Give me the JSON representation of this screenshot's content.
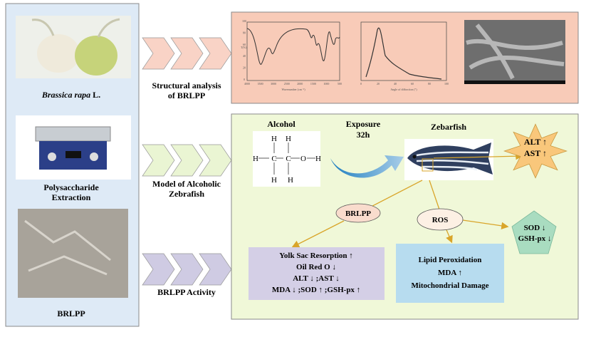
{
  "left_panel": {
    "items": [
      {
        "label_italic": "Brassica rapa",
        "label_rest": " L.",
        "image": "turnip-photo"
      },
      {
        "label_line1": "Polysaccharide",
        "label_line2": "Extraction",
        "image": "ultrasonic-bath-photo"
      },
      {
        "label": "BRLPP",
        "image": "polysaccharide-powder-photo"
      }
    ]
  },
  "steps": [
    {
      "line1": "Structural analysis",
      "line2": "of BRLPP"
    },
    {
      "line1": "Model of Alcoholic",
      "line2": "Zebrafish"
    },
    {
      "line1": "BRLPP Activity"
    }
  ],
  "structural_panel": {
    "ftir": {
      "x_ticks": [
        "4000",
        "3500",
        "3000",
        "2500",
        "2000",
        "1500",
        "1000",
        "500"
      ],
      "y_ticks": [
        "0",
        "20",
        "40",
        "60",
        "80",
        "100"
      ],
      "ylabel": "T(%)",
      "xlabel": "Wavenumber (cm⁻¹)"
    },
    "xrd": {
      "x_ticks": [
        "0",
        "20",
        "40",
        "60",
        "80",
        "100"
      ],
      "xlabel": "Angle of diffraction (°)"
    },
    "sem": {
      "image": "sem-micrograph"
    }
  },
  "model_panel": {
    "alcohol_label": "Alcohol",
    "ethanol_atoms": {
      "H": "H",
      "C": "C",
      "O": "O"
    },
    "exposure_line1": "Exposure",
    "exposure_line2": "32h",
    "zebrafish_label": "Zebarfish",
    "star_line1": "ALT ↑",
    "star_line2": "AST ↑",
    "brlpp_ellipse": "BRLPP",
    "ros_ellipse": "ROS",
    "pentagon_line1": "SOD ↓",
    "pentagon_line2": "GSH-px ↓",
    "brlpp_effects": [
      "Yolk Sac Resorption ↑",
      "Oil Red O ↓",
      "ALT ↓ ;AST ↓",
      "MDA ↓ ;SOD ↑ ;GSH-px ↑"
    ],
    "ros_effects": [
      "Lipid Peroxidation",
      "MDA ↑",
      "Mitochondrial Damage"
    ]
  },
  "colors": {
    "left_bg": "#deeaf6",
    "structural_bg": "#f8cbb8",
    "model_bg": "#f0f8d8",
    "chevron1": "#f9d3c6",
    "chevron2": "#eaf5d3",
    "chevron3": "#cfcbe3",
    "arrow": "#d9a52a",
    "star": "#f9c77b",
    "pentagon": "#a9dcc0",
    "brlpp_box": "#d4cfe6",
    "ros_box": "#b7dcef"
  }
}
